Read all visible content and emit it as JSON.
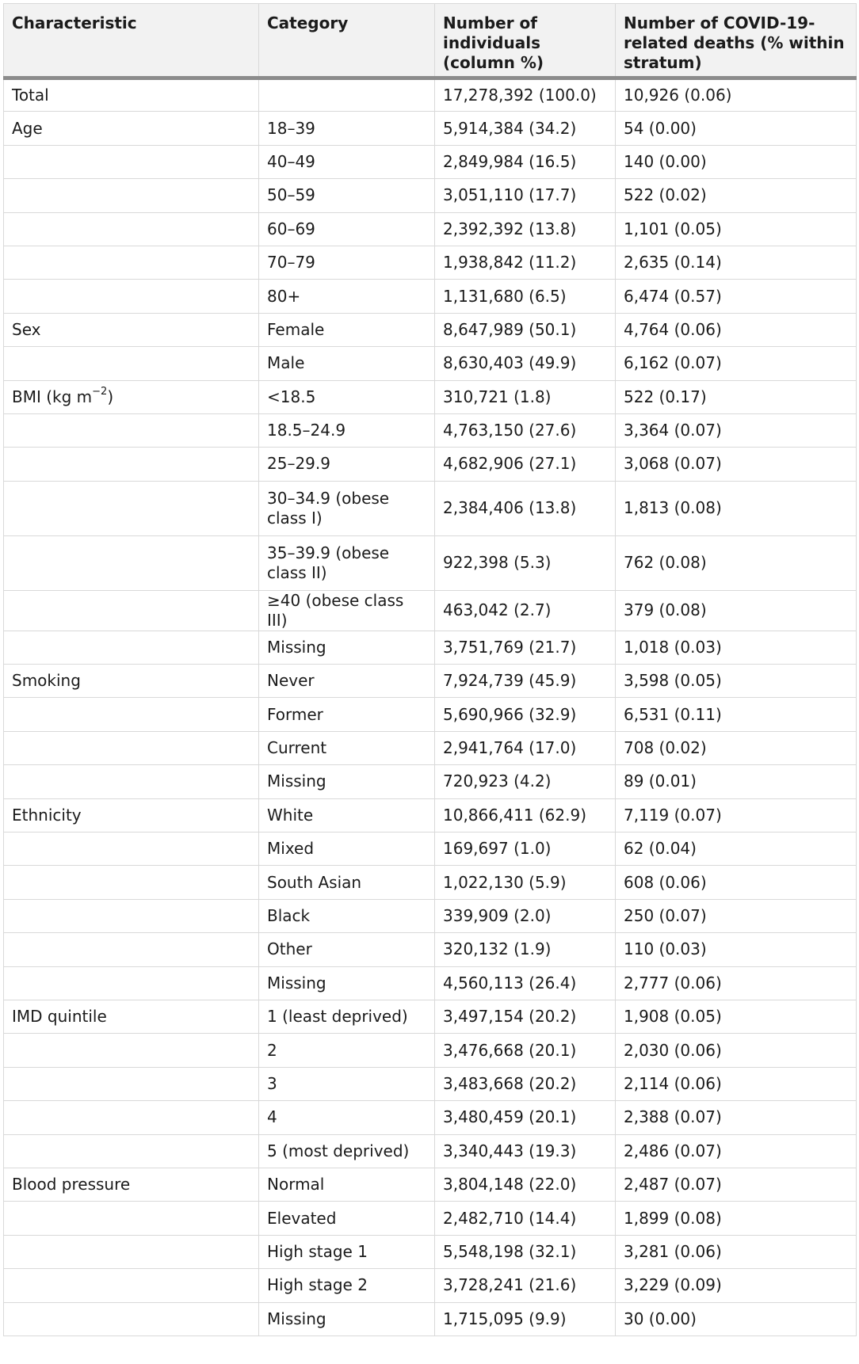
{
  "table": {
    "headers": [
      "Characteristic",
      "Category",
      "Number of individuals (column %)",
      "Number of COVID-19-related deaths (% within stratum)"
    ],
    "bmi_label_main": "BMI (kg m",
    "bmi_label_sup": "−2",
    "bmi_label_tail": ")",
    "rows": [
      {
        "characteristic": "Total",
        "category": "",
        "individuals": "17,278,392 (100.0)",
        "deaths": "10,926 (0.06)"
      },
      {
        "characteristic": "Age",
        "category": "18–39",
        "individuals": "5,914,384 (34.2)",
        "deaths": "54 (0.00)"
      },
      {
        "characteristic": "",
        "category": "40–49",
        "individuals": "2,849,984 (16.5)",
        "deaths": "140 (0.00)"
      },
      {
        "characteristic": "",
        "category": "50–59",
        "individuals": "3,051,110 (17.7)",
        "deaths": "522 (0.02)"
      },
      {
        "characteristic": "",
        "category": "60–69",
        "individuals": "2,392,392 (13.8)",
        "deaths": "1,101 (0.05)"
      },
      {
        "characteristic": "",
        "category": "70–79",
        "individuals": "1,938,842 (11.2)",
        "deaths": "2,635 (0.14)"
      },
      {
        "characteristic": "",
        "category": "80+",
        "individuals": "1,131,680 (6.5)",
        "deaths": "6,474 (0.57)"
      },
      {
        "characteristic": "Sex",
        "category": "Female",
        "individuals": "8,647,989 (50.1)",
        "deaths": "4,764 (0.06)"
      },
      {
        "characteristic": "",
        "category": "Male",
        "individuals": "8,630,403 (49.9)",
        "deaths": "6,162 (0.07)"
      },
      {
        "characteristic": "",
        "category": "<18.5",
        "individuals": "310,721 (1.8)",
        "deaths": "522 (0.17)"
      },
      {
        "characteristic": "",
        "category": "18.5–24.9",
        "individuals": "4,763,150 (27.6)",
        "deaths": "3,364 (0.07)"
      },
      {
        "characteristic": "",
        "category": "25–29.9",
        "individuals": "4,682,906 (27.1)",
        "deaths": "3,068 (0.07)"
      },
      {
        "characteristic": "",
        "category": "30–34.9 (obese class I)",
        "individuals": "2,384,406 (13.8)",
        "deaths": "1,813 (0.08)"
      },
      {
        "characteristic": "",
        "category": "35–39.9 (obese class II)",
        "individuals": "922,398 (5.3)",
        "deaths": "762 (0.08)"
      },
      {
        "characteristic": "",
        "category": "≥40 (obese class III)",
        "individuals": "463,042 (2.7)",
        "deaths": "379 (0.08)"
      },
      {
        "characteristic": "",
        "category": "Missing",
        "individuals": "3,751,769 (21.7)",
        "deaths": "1,018 (0.03)"
      },
      {
        "characteristic": "Smoking",
        "category": "Never",
        "individuals": "7,924,739 (45.9)",
        "deaths": "3,598 (0.05)"
      },
      {
        "characteristic": "",
        "category": "Former",
        "individuals": "5,690,966 (32.9)",
        "deaths": "6,531 (0.11)"
      },
      {
        "characteristic": "",
        "category": "Current",
        "individuals": "2,941,764 (17.0)",
        "deaths": "708 (0.02)"
      },
      {
        "characteristic": "",
        "category": "Missing",
        "individuals": "720,923 (4.2)",
        "deaths": "89 (0.01)"
      },
      {
        "characteristic": "Ethnicity",
        "category": "White",
        "individuals": "10,866,411 (62.9)",
        "deaths": "7,119 (0.07)"
      },
      {
        "characteristic": "",
        "category": "Mixed",
        "individuals": "169,697 (1.0)",
        "deaths": "62 (0.04)"
      },
      {
        "characteristic": "",
        "category": "South Asian",
        "individuals": "1,022,130 (5.9)",
        "deaths": "608 (0.06)"
      },
      {
        "characteristic": "",
        "category": "Black",
        "individuals": "339,909 (2.0)",
        "deaths": "250 (0.07)"
      },
      {
        "characteristic": "",
        "category": "Other",
        "individuals": "320,132 (1.9)",
        "deaths": "110 (0.03)"
      },
      {
        "characteristic": "",
        "category": "Missing",
        "individuals": "4,560,113 (26.4)",
        "deaths": "2,777 (0.06)"
      },
      {
        "characteristic": "IMD quintile",
        "category": "1 (least deprived)",
        "individuals": "3,497,154 (20.2)",
        "deaths": "1,908 (0.05)"
      },
      {
        "characteristic": "",
        "category": "2",
        "individuals": "3,476,668 (20.1)",
        "deaths": "2,030 (0.06)"
      },
      {
        "characteristic": "",
        "category": "3",
        "individuals": "3,483,668 (20.2)",
        "deaths": "2,114 (0.06)"
      },
      {
        "characteristic": "",
        "category": "4",
        "individuals": "3,480,459 (20.1)",
        "deaths": "2,388 (0.07)"
      },
      {
        "characteristic": "",
        "category": "5 (most deprived)",
        "individuals": "3,340,443 (19.3)",
        "deaths": "2,486 (0.07)"
      },
      {
        "characteristic": "Blood pressure",
        "category": "Normal",
        "individuals": "3,804,148 (22.0)",
        "deaths": "2,487 (0.07)"
      },
      {
        "characteristic": "",
        "category": "Elevated",
        "individuals": "2,482,710 (14.4)",
        "deaths": "1,899 (0.08)"
      },
      {
        "characteristic": "",
        "category": "High stage 1",
        "individuals": "5,548,198 (32.1)",
        "deaths": "3,281 (0.06)"
      },
      {
        "characteristic": "",
        "category": "High stage 2",
        "individuals": "3,728,241 (21.6)",
        "deaths": "3,229 (0.09)"
      },
      {
        "characteristic": "",
        "category": "Missing",
        "individuals": "1,715,095 (9.9)",
        "deaths": "30 (0.00)"
      }
    ]
  }
}
